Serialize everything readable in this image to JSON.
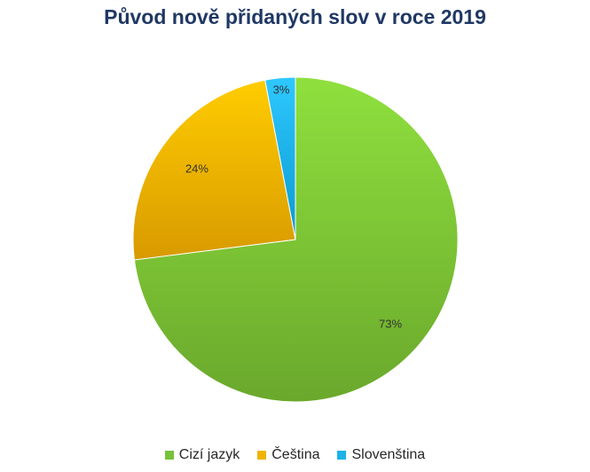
{
  "chart_data": {
    "type": "pie",
    "title": "Původ nově přidaných slov v roce 2019",
    "categories": [
      "Cizí jazyk",
      "Čeština",
      "Slovenština"
    ],
    "values": [
      73,
      24,
      3
    ],
    "labels": [
      "73%",
      "24%",
      "3%"
    ],
    "colors": [
      "#76c23a",
      "#f0b400",
      "#1bb2e6"
    ],
    "legend_position": "bottom"
  }
}
